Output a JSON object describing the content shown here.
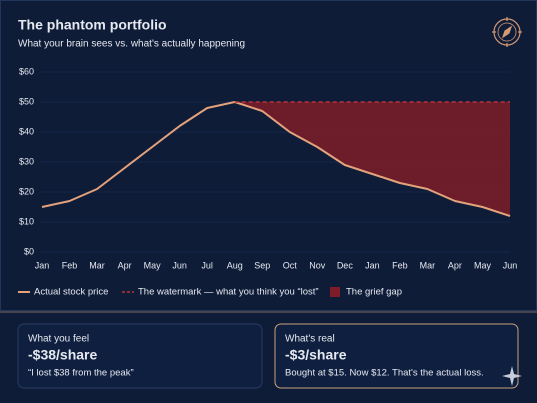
{
  "chart_data": {
    "type": "line",
    "title": "The phantom portfolio",
    "subtitle": "What your brain sees vs. what's actually happening",
    "categories": [
      "Jan",
      "Feb",
      "Mar",
      "Apr",
      "May",
      "Jun",
      "Jul",
      "Aug",
      "Sep",
      "Oct",
      "Nov",
      "Dec",
      "Jan",
      "Feb",
      "Mar",
      "Apr",
      "May",
      "Jun"
    ],
    "series": [
      {
        "name": "Actual stock price",
        "color": "#e3a27c",
        "values": [
          15,
          17,
          21,
          28,
          35,
          42,
          48,
          50,
          47,
          40,
          35,
          29,
          26,
          23,
          21,
          17,
          15,
          12
        ]
      },
      {
        "name": "The watermark — what you think you “lost”",
        "color": "#b8343a",
        "dashed": true,
        "values": [
          null,
          null,
          null,
          null,
          null,
          null,
          null,
          50,
          50,
          50,
          50,
          50,
          50,
          50,
          50,
          50,
          50,
          50
        ]
      }
    ],
    "area": {
      "name": "The grief gap",
      "color": "#7e1d28"
    },
    "ylim": [
      0,
      60
    ],
    "yticks": [
      {
        "value": 0,
        "label": "$0"
      },
      {
        "value": 10,
        "label": "$10"
      },
      {
        "value": 20,
        "label": "$20"
      },
      {
        "value": 30,
        "label": "$30"
      },
      {
        "value": 40,
        "label": "$40"
      },
      {
        "value": 50,
        "label": "$50"
      },
      {
        "value": 60,
        "label": "$60"
      }
    ],
    "grid": true
  },
  "cards": [
    {
      "label": "What you feel",
      "value": "-$38/share",
      "note": "“I lost $38 from the peak”"
    },
    {
      "label": "What's real",
      "value": "-$3/share",
      "note": "Bought at $15. Now $12. That's the actual loss."
    }
  ]
}
